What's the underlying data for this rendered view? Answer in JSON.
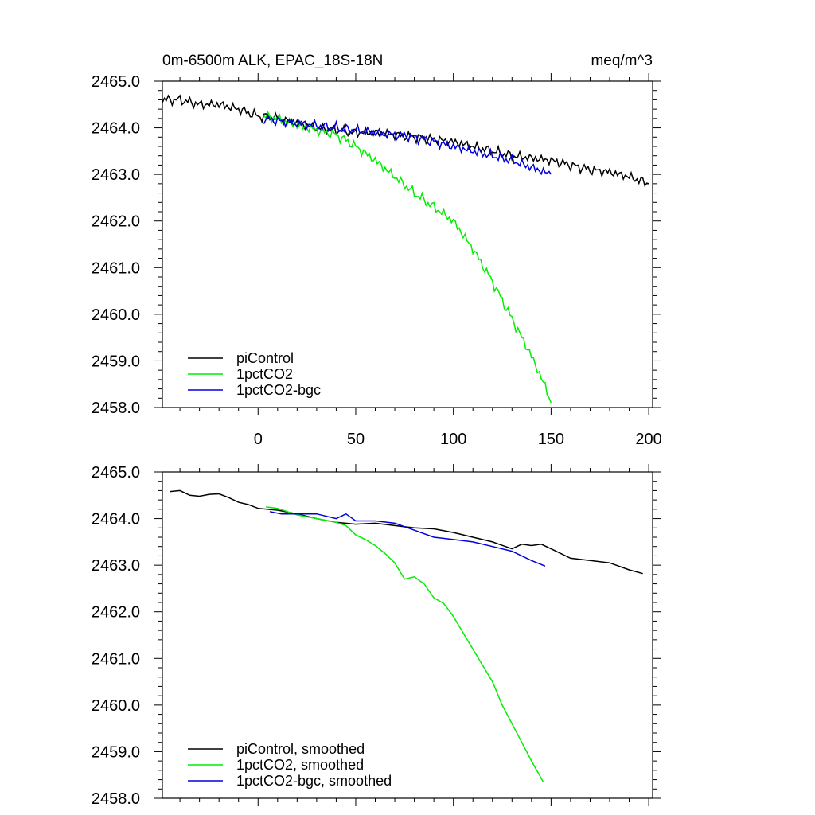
{
  "header": {
    "title": "0m-6500m ALK, EPAC_18S-18N",
    "units": "meq/m^3"
  },
  "colors": {
    "piControl": "#000000",
    "1pctCO2": "#00ee00",
    "1pctCO2-bgc": "#0000dd"
  },
  "chart_data": [
    {
      "type": "line",
      "xlim": [
        -49,
        202
      ],
      "ylim": [
        2458.0,
        2465.0
      ],
      "x_ticks": [
        "0",
        "50",
        "100",
        "150",
        "200"
      ],
      "y_ticks": [
        "2458.0",
        "2459.0",
        "2460.0",
        "2461.0",
        "2462.0",
        "2463.0",
        "2464.0",
        "2465.0"
      ],
      "grid": false,
      "legend_position": "bottom-left",
      "series": [
        {
          "name": "piControl",
          "color_key": "piControl",
          "x": [
            -49,
            -40,
            -30,
            -20,
            -10,
            0,
            10,
            20,
            30,
            40,
            50,
            60,
            70,
            80,
            90,
            100,
            110,
            120,
            130,
            140,
            150,
            160,
            170,
            180,
            190,
            200
          ],
          "y": [
            2464.6,
            2464.6,
            2464.5,
            2464.5,
            2464.4,
            2464.25,
            2464.2,
            2464.1,
            2464.0,
            2463.95,
            2463.9,
            2463.9,
            2463.85,
            2463.8,
            2463.75,
            2463.7,
            2463.6,
            2463.5,
            2463.4,
            2463.35,
            2463.3,
            2463.2,
            2463.1,
            2463.05,
            2462.95,
            2462.8
          ]
        },
        {
          "name": "1pctCO2",
          "color_key": "1pctCO2",
          "x": [
            3,
            10,
            20,
            30,
            40,
            50,
            60,
            70,
            80,
            90,
            100,
            110,
            120,
            130,
            140,
            147,
            150
          ],
          "y": [
            2464.25,
            2464.2,
            2464.05,
            2463.95,
            2463.85,
            2463.6,
            2463.3,
            2462.95,
            2462.6,
            2462.3,
            2462.0,
            2461.4,
            2460.7,
            2459.9,
            2459.1,
            2458.45,
            2458.1
          ]
        },
        {
          "name": "1pctCO2-bgc",
          "color_key": "1pctCO2-bgc",
          "x": [
            3,
            10,
            20,
            30,
            40,
            50,
            60,
            70,
            80,
            90,
            100,
            110,
            120,
            130,
            140,
            150
          ],
          "y": [
            2464.2,
            2464.15,
            2464.1,
            2464.05,
            2464.0,
            2463.95,
            2463.9,
            2463.85,
            2463.8,
            2463.7,
            2463.6,
            2463.5,
            2463.4,
            2463.3,
            2463.15,
            2463.0
          ]
        }
      ]
    },
    {
      "type": "line",
      "xlim": [
        -49,
        202
      ],
      "ylim": [
        2458.0,
        2465.0
      ],
      "y_ticks": [
        "2458.0",
        "2459.0",
        "2460.0",
        "2461.0",
        "2462.0",
        "2463.0",
        "2464.0",
        "2465.0"
      ],
      "grid": false,
      "legend_position": "bottom-left",
      "series": [
        {
          "name": "piControl, smoothed",
          "color_key": "piControl",
          "x": [
            -45,
            -40,
            -35,
            -30,
            -25,
            -20,
            -15,
            -10,
            -5,
            0,
            5,
            10,
            20,
            30,
            40,
            50,
            60,
            70,
            80,
            90,
            100,
            110,
            120,
            130,
            135,
            140,
            145,
            150,
            160,
            170,
            180,
            190,
            197
          ],
          "y": [
            2464.58,
            2464.6,
            2464.5,
            2464.48,
            2464.52,
            2464.53,
            2464.45,
            2464.35,
            2464.3,
            2464.22,
            2464.2,
            2464.18,
            2464.1,
            2464.0,
            2463.92,
            2463.88,
            2463.9,
            2463.85,
            2463.8,
            2463.78,
            2463.7,
            2463.6,
            2463.5,
            2463.35,
            2463.45,
            2463.42,
            2463.45,
            2463.35,
            2463.15,
            2463.1,
            2463.05,
            2462.9,
            2462.82
          ]
        },
        {
          "name": "1pctCO2, smoothed",
          "color_key": "1pctCO2",
          "x": [
            4,
            10,
            20,
            30,
            40,
            45,
            50,
            55,
            60,
            65,
            70,
            75,
            80,
            85,
            90,
            95,
            100,
            105,
            110,
            115,
            120,
            125,
            130,
            135,
            140,
            146
          ],
          "y": [
            2464.25,
            2464.22,
            2464.08,
            2464.0,
            2463.92,
            2463.85,
            2463.65,
            2463.55,
            2463.42,
            2463.25,
            2463.05,
            2462.7,
            2462.75,
            2462.6,
            2462.3,
            2462.18,
            2461.9,
            2461.55,
            2461.2,
            2460.85,
            2460.5,
            2460.0,
            2459.6,
            2459.2,
            2458.8,
            2458.35
          ]
        },
        {
          "name": "1pctCO2-bgc, smoothed",
          "color_key": "1pctCO2-bgc",
          "x": [
            6,
            12,
            20,
            30,
            40,
            45,
            50,
            55,
            60,
            70,
            80,
            90,
            100,
            110,
            120,
            130,
            140,
            147
          ],
          "y": [
            2464.15,
            2464.1,
            2464.1,
            2464.1,
            2464.0,
            2464.1,
            2463.95,
            2463.95,
            2463.95,
            2463.9,
            2463.75,
            2463.6,
            2463.55,
            2463.5,
            2463.4,
            2463.3,
            2463.1,
            2462.98
          ]
        }
      ]
    }
  ]
}
